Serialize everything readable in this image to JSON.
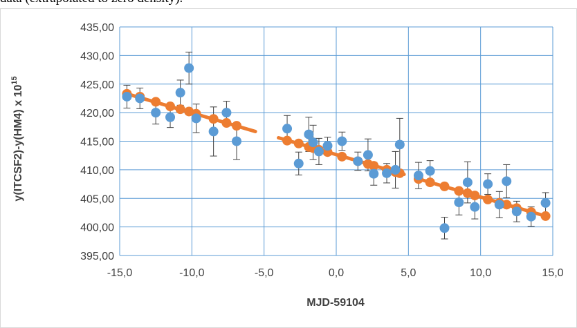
{
  "caption": "data (extrapolated to zero density).",
  "chart_data": {
    "type": "scatter",
    "title": "",
    "xlabel": "MJD-59104",
    "ylabel": "y(ITCSF2)-y(HM4) x 10",
    "ylabel_superscript": "15",
    "xlim": [
      -15,
      15
    ],
    "ylim": [
      395,
      435
    ],
    "x_ticks": [
      -15,
      -10,
      -5,
      0,
      5,
      10,
      15
    ],
    "x_tick_labels": [
      "-15,0",
      "-10,0",
      "-5,0",
      "0,0",
      "5,0",
      "10,0",
      "15,0"
    ],
    "y_ticks": [
      395,
      400,
      405,
      410,
      415,
      420,
      425,
      430,
      435
    ],
    "y_tick_labels": [
      "395,00",
      "400,00",
      "405,00",
      "410,00",
      "415,00",
      "420,00",
      "425,00",
      "430,00",
      "435,00"
    ],
    "grid": true,
    "colors": {
      "measured": "#5b9bd5",
      "extrapolated": "#ed7d31",
      "errorbar": "#404040",
      "grid": "#5b9bd5"
    },
    "series": [
      {
        "marker": "circle-blue",
        "points": [
          {
            "x": -14.5,
            "y": 422.8,
            "err": 2.0
          },
          {
            "x": -13.6,
            "y": 422.5,
            "err": 1.8
          },
          {
            "x": -12.5,
            "y": 420.0,
            "err": 2.0
          },
          {
            "x": -11.5,
            "y": 419.2,
            "err": 1.8
          },
          {
            "x": -10.8,
            "y": 423.5,
            "err": 2.2
          },
          {
            "x": -10.2,
            "y": 427.8,
            "err": 2.8
          },
          {
            "x": -9.7,
            "y": 419.0,
            "err": 2.5
          },
          {
            "x": -8.5,
            "y": 416.7,
            "err": 4.3
          },
          {
            "x": -7.6,
            "y": 420.0,
            "err": 2.0
          },
          {
            "x": -6.9,
            "y": 415.0,
            "err": 3.2
          },
          {
            "x": -3.4,
            "y": 417.2,
            "err": 2.3
          },
          {
            "x": -2.6,
            "y": 411.1,
            "err": 2.0
          },
          {
            "x": -1.9,
            "y": 416.2,
            "err": 3.0
          },
          {
            "x": -1.6,
            "y": 414.8,
            "err": 3.0
          },
          {
            "x": -1.2,
            "y": 413.2,
            "err": 2.3
          },
          {
            "x": -0.6,
            "y": 414.2,
            "err": 1.5
          },
          {
            "x": 0.4,
            "y": 415.0,
            "err": 1.6
          },
          {
            "x": 1.5,
            "y": 411.5,
            "err": 1.6
          },
          {
            "x": 2.2,
            "y": 412.6,
            "err": 2.8
          },
          {
            "x": 2.6,
            "y": 409.3,
            "err": 2.0
          },
          {
            "x": 3.5,
            "y": 409.4,
            "err": 1.7
          },
          {
            "x": 4.1,
            "y": 410.0,
            "err": 3.2
          },
          {
            "x": 4.4,
            "y": 414.4,
            "err": 4.6
          },
          {
            "x": 5.7,
            "y": 409.0,
            "err": 2.3
          },
          {
            "x": 6.5,
            "y": 409.8,
            "err": 1.8
          },
          {
            "x": 7.5,
            "y": 399.8,
            "err": 1.9
          },
          {
            "x": 8.5,
            "y": 404.3,
            "err": 2.2
          },
          {
            "x": 9.1,
            "y": 407.8,
            "err": 3.6
          },
          {
            "x": 9.6,
            "y": 403.5,
            "err": 2.1
          },
          {
            "x": 10.5,
            "y": 407.5,
            "err": 1.8
          },
          {
            "x": 11.3,
            "y": 403.9,
            "err": 2.3
          },
          {
            "x": 11.8,
            "y": 408.0,
            "err": 2.9
          },
          {
            "x": 12.5,
            "y": 402.7,
            "err": 1.8
          },
          {
            "x": 13.5,
            "y": 401.8,
            "err": 1.7
          },
          {
            "x": 14.5,
            "y": 404.2,
            "err": 1.8
          }
        ]
      },
      {
        "marker": "circle-orange",
        "points": [
          {
            "x": -14.5,
            "y": 423.3
          },
          {
            "x": -13.6,
            "y": 422.8
          },
          {
            "x": -12.5,
            "y": 421.9
          },
          {
            "x": -11.5,
            "y": 421.1
          },
          {
            "x": -10.8,
            "y": 420.6
          },
          {
            "x": -10.2,
            "y": 420.2
          },
          {
            "x": -9.7,
            "y": 419.8
          },
          {
            "x": -8.5,
            "y": 418.9
          },
          {
            "x": -7.6,
            "y": 418.2
          },
          {
            "x": -6.9,
            "y": 417.7
          },
          {
            "x": -3.4,
            "y": 415.1
          },
          {
            "x": -2.6,
            "y": 414.6
          },
          {
            "x": -1.9,
            "y": 414.0
          },
          {
            "x": -1.6,
            "y": 413.8
          },
          {
            "x": -1.2,
            "y": 413.5
          },
          {
            "x": -0.6,
            "y": 413.1
          },
          {
            "x": 0.4,
            "y": 412.3
          },
          {
            "x": 1.5,
            "y": 411.5
          },
          {
            "x": 2.2,
            "y": 411.0
          },
          {
            "x": 2.6,
            "y": 410.7
          },
          {
            "x": 3.5,
            "y": 410.0
          },
          {
            "x": 4.1,
            "y": 409.6
          },
          {
            "x": 4.4,
            "y": 409.4
          },
          {
            "x": 5.7,
            "y": 408.4
          },
          {
            "x": 6.5,
            "y": 407.8
          },
          {
            "x": 7.5,
            "y": 407.1
          },
          {
            "x": 8.5,
            "y": 406.3
          },
          {
            "x": 9.1,
            "y": 405.9
          },
          {
            "x": 9.6,
            "y": 405.5
          },
          {
            "x": 10.5,
            "y": 404.8
          },
          {
            "x": 11.3,
            "y": 404.2
          },
          {
            "x": 11.8,
            "y": 403.9
          },
          {
            "x": 12.5,
            "y": 403.3
          },
          {
            "x": 13.5,
            "y": 402.6
          },
          {
            "x": 14.5,
            "y": 401.9
          }
        ]
      }
    ],
    "trend_segments": [
      {
        "x": [
          -14.5,
          -5.6
        ],
        "y": [
          423.3,
          416.7
        ]
      },
      {
        "x": [
          -4.0,
          4.7
        ],
        "y": [
          415.6,
          409.2
        ]
      },
      {
        "x": [
          5.7,
          14.5
        ],
        "y": [
          408.4,
          401.9
        ]
      }
    ]
  }
}
